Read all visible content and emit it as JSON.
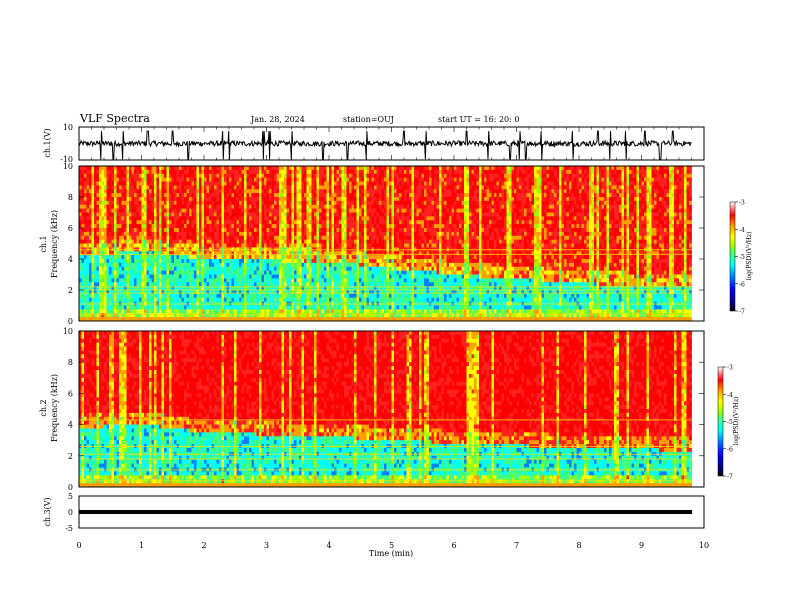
{
  "header": {
    "title": "VLF Spectra",
    "date": "Jan. 28, 2024",
    "station": "station=OUJ",
    "start": "start UT =  16: 20: 0"
  },
  "colors": {
    "scale": [
      "#000080",
      "#0000ff",
      "#0080ff",
      "#00ffff",
      "#40ff80",
      "#a0ff00",
      "#ffff00",
      "#ffa000",
      "#ff2020",
      "#ff0000",
      "#ffffff"
    ]
  },
  "chart_data": [
    {
      "type": "line",
      "panel": "ch1-waveform",
      "ylabel": "ch.1(V)",
      "ylim": [
        -10,
        10
      ],
      "yticks": [
        "10",
        "-10"
      ],
      "xlim": [
        0,
        10
      ],
      "baseline": 0,
      "spikes_min": [
        0.35,
        0.55,
        0.7,
        1.1,
        1.5,
        1.75,
        2.3,
        2.4,
        2.95,
        3.05,
        3.4,
        3.9,
        4.3,
        4.6,
        5.2,
        5.55,
        6.2,
        6.55,
        6.9,
        7.05,
        7.15,
        7.4,
        7.9,
        8.3,
        8.5,
        8.75,
        9.05,
        9.3,
        9.5
      ]
    },
    {
      "type": "heatmap",
      "panel": "ch1-spectrogram",
      "ylabel": "ch.1\nFrequency (kHz)",
      "ylim": [
        0,
        10
      ],
      "yticks": [
        "0",
        "2",
        "4",
        "6",
        "8",
        "10"
      ],
      "xlim": [
        0,
        10
      ],
      "colorbar": {
        "label": "log(PSD)(V²/Hz)",
        "range": [
          -7,
          -3
        ],
        "ticks": [
          "-3",
          "-4",
          "-5",
          "-6",
          "-7"
        ]
      },
      "low_band_top_khz": [
        [
          0,
          4.2
        ],
        [
          1,
          4.5
        ],
        [
          2,
          4.0
        ],
        [
          4,
          3.8
        ],
        [
          6,
          3.0
        ],
        [
          8,
          2.4
        ],
        [
          10,
          2.2
        ]
      ],
      "lines_khz": [
        0.4,
        1.1,
        1.8,
        2.0,
        2.2,
        4.3,
        4.6
      ]
    },
    {
      "type": "heatmap",
      "panel": "ch2-spectrogram",
      "ylabel": "ch.2\nFrequency (kHz)",
      "ylim": [
        0,
        10
      ],
      "yticks": [
        "0",
        "2",
        "4",
        "6",
        "8",
        "10"
      ],
      "xlim": [
        0,
        10
      ],
      "colorbar": {
        "label": "log(PSD)(V²/Hz)",
        "range": [
          -7,
          -3
        ],
        "ticks": [
          "-3",
          "-4",
          "-5",
          "-6",
          "-7"
        ]
      },
      "low_band_top_khz": [
        [
          0,
          3.8
        ],
        [
          1,
          4.0
        ],
        [
          2,
          3.5
        ],
        [
          4,
          3.2
        ],
        [
          6,
          2.8
        ],
        [
          8,
          2.5
        ],
        [
          10,
          2.3
        ]
      ],
      "lines_khz": [
        0.4,
        1.1,
        1.8,
        2.1,
        2.6,
        4.3
      ]
    },
    {
      "type": "line",
      "panel": "ch3-waveform",
      "ylabel": "ch.3(V)",
      "ylim": [
        -5,
        5
      ],
      "yticks": [
        "5",
        "0",
        "-5"
      ],
      "xlim": [
        0,
        10
      ],
      "level_v": 0
    }
  ],
  "xaxis": {
    "label": "Time (min)",
    "ticks": [
      "0",
      "1",
      "2",
      "3",
      "4",
      "5",
      "6",
      "7",
      "8",
      "9",
      "10"
    ]
  }
}
